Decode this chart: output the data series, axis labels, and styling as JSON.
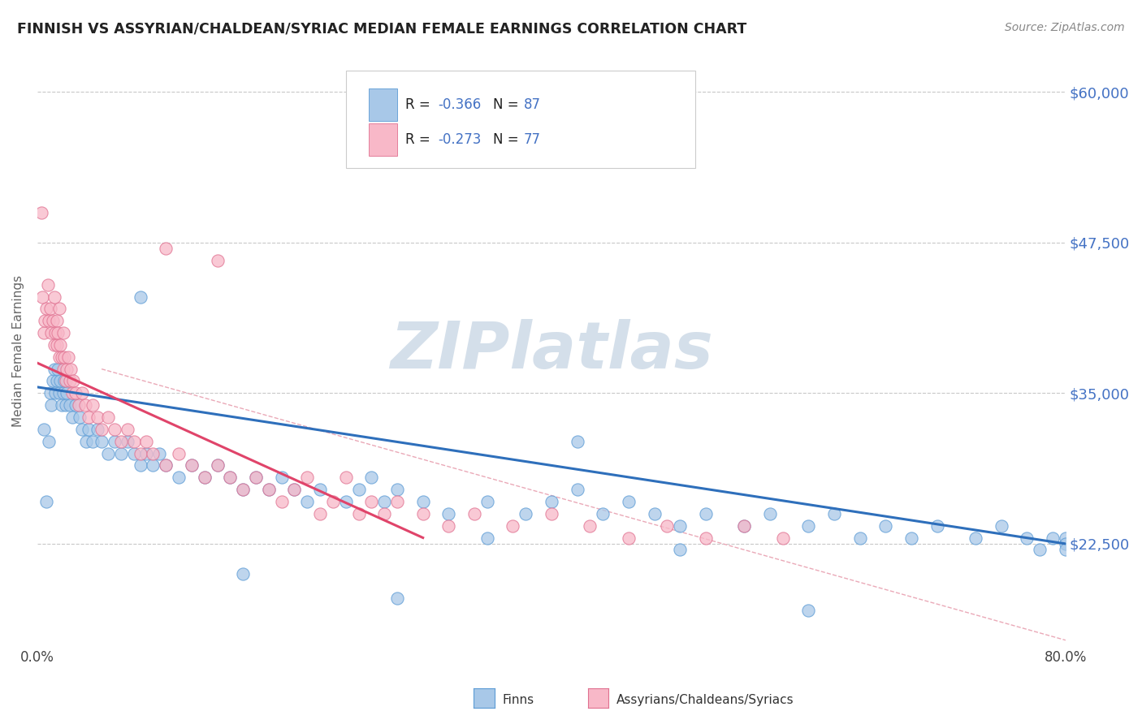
{
  "title": "FINNISH VS ASSYRIAN/CHALDEAN/SYRIAC MEDIAN FEMALE EARNINGS CORRELATION CHART",
  "source": "Source: ZipAtlas.com",
  "ylabel": "Median Female Earnings",
  "xlim": [
    0.0,
    0.8
  ],
  "ylim": [
    14000,
    63000
  ],
  "yticks": [
    22500,
    35000,
    47500,
    60000
  ],
  "ytick_labels": [
    "$22,500",
    "$35,000",
    "$47,500",
    "$60,000"
  ],
  "blue_color": "#a8c8e8",
  "blue_edge": "#5b9bd5",
  "pink_color": "#f8b8c8",
  "pink_edge": "#e07090",
  "trend_blue": "#2e6fbb",
  "trend_pink": "#e0446a",
  "ref_line_color": "#e8a0b0",
  "watermark": "ZIPlatlas",
  "watermark_color": "#d0dce8",
  "background_color": "#ffffff",
  "grid_color": "#c8c8c8",
  "blue_x": [
    0.005,
    0.007,
    0.009,
    0.01,
    0.011,
    0.012,
    0.013,
    0.014,
    0.015,
    0.016,
    0.017,
    0.018,
    0.019,
    0.02,
    0.021,
    0.022,
    0.023,
    0.025,
    0.027,
    0.03,
    0.033,
    0.035,
    0.038,
    0.04,
    0.043,
    0.047,
    0.05,
    0.055,
    0.06,
    0.065,
    0.07,
    0.075,
    0.08,
    0.085,
    0.09,
    0.095,
    0.1,
    0.11,
    0.12,
    0.13,
    0.14,
    0.15,
    0.16,
    0.17,
    0.18,
    0.19,
    0.2,
    0.21,
    0.22,
    0.24,
    0.25,
    0.26,
    0.27,
    0.28,
    0.3,
    0.32,
    0.35,
    0.38,
    0.4,
    0.42,
    0.44,
    0.46,
    0.48,
    0.5,
    0.52,
    0.55,
    0.57,
    0.6,
    0.62,
    0.64,
    0.66,
    0.68,
    0.7,
    0.73,
    0.75,
    0.77,
    0.78,
    0.79,
    0.8,
    0.8,
    0.8,
    0.16,
    0.5,
    0.6,
    0.42,
    0.28,
    0.35,
    0.08
  ],
  "blue_y": [
    32000,
    26000,
    31000,
    35000,
    34000,
    36000,
    37000,
    35000,
    36000,
    37000,
    35000,
    36000,
    34000,
    35000,
    36000,
    34000,
    35000,
    34000,
    33000,
    34000,
    33000,
    32000,
    31000,
    32000,
    31000,
    32000,
    31000,
    30000,
    31000,
    30000,
    31000,
    30000,
    29000,
    30000,
    29000,
    30000,
    29000,
    28000,
    29000,
    28000,
    29000,
    28000,
    27000,
    28000,
    27000,
    28000,
    27000,
    26000,
    27000,
    26000,
    27000,
    28000,
    26000,
    27000,
    26000,
    25000,
    26000,
    25000,
    26000,
    27000,
    25000,
    26000,
    25000,
    24000,
    25000,
    24000,
    25000,
    24000,
    25000,
    23000,
    24000,
    23000,
    24000,
    23000,
    24000,
    23000,
    22000,
    23000,
    23000,
    22500,
    22000,
    20000,
    22000,
    17000,
    31000,
    18000,
    23000,
    43000
  ],
  "pink_x": [
    0.003,
    0.004,
    0.005,
    0.006,
    0.007,
    0.008,
    0.009,
    0.01,
    0.011,
    0.012,
    0.013,
    0.013,
    0.014,
    0.015,
    0.015,
    0.016,
    0.017,
    0.017,
    0.018,
    0.019,
    0.02,
    0.02,
    0.021,
    0.022,
    0.023,
    0.024,
    0.025,
    0.026,
    0.027,
    0.028,
    0.03,
    0.032,
    0.035,
    0.037,
    0.04,
    0.043,
    0.047,
    0.05,
    0.055,
    0.06,
    0.065,
    0.07,
    0.075,
    0.08,
    0.085,
    0.09,
    0.1,
    0.11,
    0.12,
    0.13,
    0.14,
    0.15,
    0.16,
    0.17,
    0.18,
    0.19,
    0.2,
    0.21,
    0.22,
    0.23,
    0.24,
    0.25,
    0.26,
    0.27,
    0.28,
    0.3,
    0.32,
    0.34,
    0.37,
    0.4,
    0.43,
    0.46,
    0.49,
    0.52,
    0.55,
    0.58,
    0.1,
    0.14
  ],
  "pink_y": [
    50000,
    43000,
    40000,
    41000,
    42000,
    44000,
    41000,
    42000,
    40000,
    41000,
    39000,
    43000,
    40000,
    39000,
    41000,
    40000,
    38000,
    42000,
    39000,
    38000,
    37000,
    40000,
    38000,
    36000,
    37000,
    38000,
    36000,
    37000,
    35000,
    36000,
    35000,
    34000,
    35000,
    34000,
    33000,
    34000,
    33000,
    32000,
    33000,
    32000,
    31000,
    32000,
    31000,
    30000,
    31000,
    30000,
    29000,
    30000,
    29000,
    28000,
    29000,
    28000,
    27000,
    28000,
    27000,
    26000,
    27000,
    28000,
    25000,
    26000,
    28000,
    25000,
    26000,
    25000,
    26000,
    25000,
    24000,
    25000,
    24000,
    25000,
    24000,
    23000,
    24000,
    23000,
    24000,
    23000,
    47000,
    46000
  ]
}
